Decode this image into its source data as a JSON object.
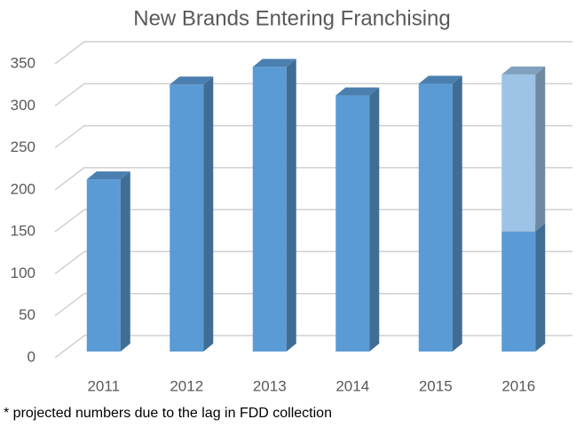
{
  "chart_data": {
    "type": "bar3d",
    "title": "New Brands Entering Franchising",
    "categories": [
      "2011",
      "2012",
      "2013",
      "2014",
      "2015",
      "2016"
    ],
    "series": [
      {
        "color": "#5b9bd5",
        "values": [
          205,
          318,
          339,
          305,
          319,
          143
        ]
      },
      {
        "color": "#9dc3e6",
        "values": [
          null,
          null,
          null,
          null,
          null,
          187
        ]
      }
    ],
    "stacked": true,
    "ylim": [
      0,
      350
    ],
    "yticks": [
      0,
      50,
      100,
      150,
      200,
      250,
      300,
      350
    ],
    "grid": true,
    "footnote": "* projected numbers due to the lag in FDD collection"
  }
}
